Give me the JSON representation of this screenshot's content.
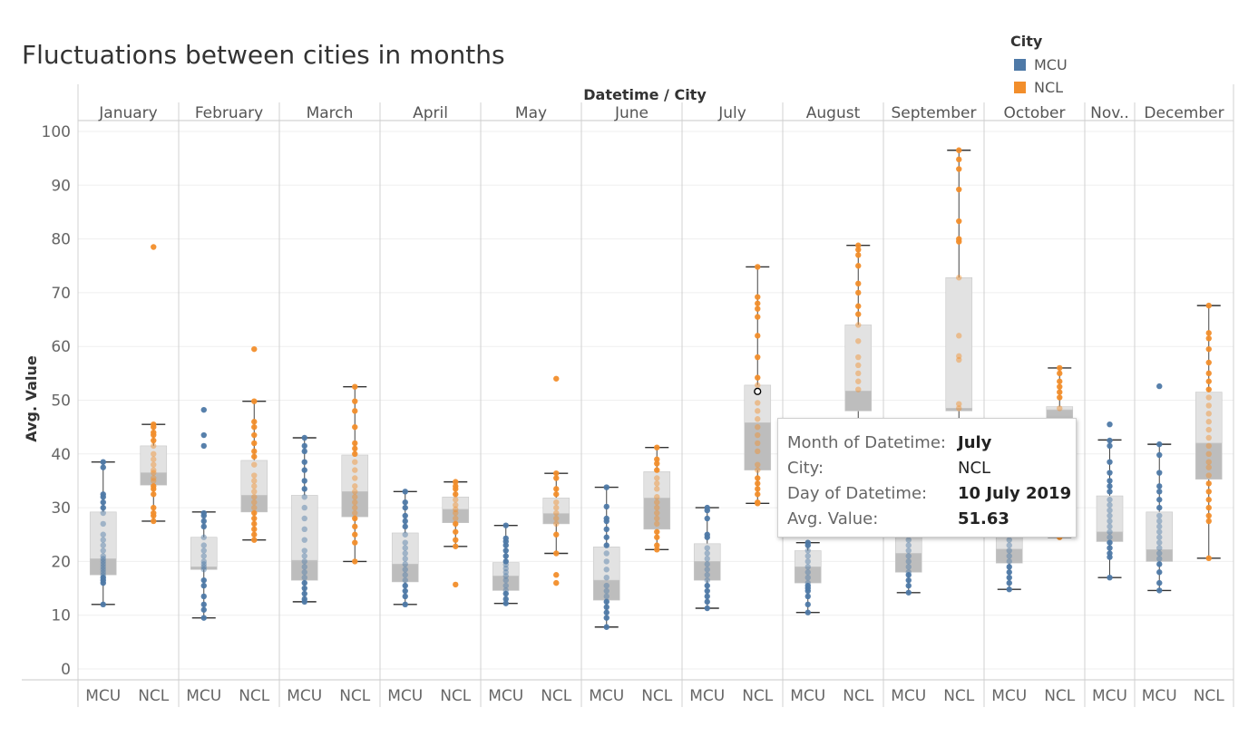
{
  "chart_data": {
    "type": "box",
    "title": "Fluctuations between cities in months",
    "column_header": "Datetime / City",
    "ylabel": "Avg. Value",
    "ylim": [
      0,
      100
    ],
    "yticks": [
      0,
      10,
      20,
      30,
      40,
      50,
      60,
      70,
      80,
      90,
      100
    ],
    "legend": {
      "title": "City",
      "position": "top-right",
      "items": [
        {
          "name": "MCU",
          "color": "#4e79a7"
        },
        {
          "name": "NCL",
          "color": "#f28e2b"
        }
      ]
    },
    "months": [
      {
        "label": "January",
        "MCU": {
          "min": 12,
          "q1": 17.5,
          "median": 20.5,
          "q3": 29.2,
          "max": 38.5,
          "points": [
            12,
            16,
            16.5,
            17,
            17.5,
            18,
            18.5,
            19,
            19.5,
            20,
            20.5,
            21,
            22,
            23,
            24,
            25,
            27,
            29,
            30,
            31,
            32,
            32.5,
            37.5,
            38.5
          ]
        },
        "NCL": {
          "min": 27.5,
          "q1": 34.2,
          "median": 36.5,
          "q3": 41.5,
          "max": 45.5,
          "points": [
            27.5,
            28.5,
            29,
            30,
            32.5,
            33.5,
            34,
            35,
            35.5,
            36.5,
            37,
            38,
            39,
            40,
            41.5,
            42.5,
            43.5,
            44,
            45,
            45.5,
            78.5
          ]
        }
      },
      {
        "label": "February",
        "MCU": {
          "min": 9.5,
          "q1": 18.5,
          "median": 19,
          "q3": 24.5,
          "max": 29.2,
          "points": [
            9.5,
            11,
            12,
            13.5,
            15.5,
            16.5,
            18.5,
            19,
            19.5,
            20,
            21,
            22,
            23,
            24.5,
            26.5,
            27.5,
            28.5,
            29,
            41.5,
            43.5,
            48.2
          ]
        },
        "NCL": {
          "min": 24,
          "q1": 29.2,
          "median": 32.3,
          "q3": 38.8,
          "max": 49.8,
          "points": [
            24,
            25,
            26,
            27,
            28,
            29,
            30,
            31,
            32,
            33,
            34,
            35,
            36,
            38,
            39.5,
            40.5,
            42,
            43.5,
            45,
            46,
            49.8,
            59.5
          ]
        }
      },
      {
        "label": "March",
        "MCU": {
          "min": 12.5,
          "q1": 16.5,
          "median": 20.2,
          "q3": 32.3,
          "max": 43,
          "points": [
            12.5,
            13,
            14,
            15,
            16,
            17,
            18,
            19,
            20,
            21,
            22,
            24,
            26,
            28,
            30,
            32,
            33.5,
            35,
            37,
            38.5,
            40.5,
            41.5,
            43
          ]
        },
        "NCL": {
          "min": 20,
          "q1": 28.3,
          "median": 33,
          "q3": 39.8,
          "max": 52.5,
          "points": [
            20,
            23.5,
            25,
            26.5,
            28,
            29,
            30,
            31,
            32,
            33,
            34,
            35.5,
            37,
            38.5,
            40,
            41,
            42,
            45,
            48,
            49.8,
            52.5
          ]
        }
      },
      {
        "label": "April",
        "MCU": {
          "min": 12,
          "q1": 16.2,
          "median": 19.5,
          "q3": 25.3,
          "max": 33,
          "points": [
            12,
            13.5,
            14.5,
            15.5,
            16.5,
            17.5,
            18.5,
            19.5,
            20.5,
            21.5,
            22.5,
            23.5,
            25,
            26.5,
            27.5,
            28.5,
            30,
            31,
            33
          ]
        },
        "NCL": {
          "min": 22.8,
          "q1": 27.2,
          "median": 29.7,
          "q3": 32,
          "max": 34.8,
          "points": [
            15.7,
            22.8,
            24,
            25.5,
            27,
            28,
            29,
            29.7,
            30.5,
            31.5,
            32.5,
            33.5,
            34,
            34.8
          ]
        }
      },
      {
        "label": "May",
        "MCU": {
          "min": 12.2,
          "q1": 14.6,
          "median": 17.3,
          "q3": 19.8,
          "max": 26.7,
          "points": [
            12.2,
            13,
            14,
            14.6,
            15.5,
            16.5,
            17.3,
            18,
            18.7,
            19.4,
            20,
            21,
            22,
            23,
            23.7,
            24.3,
            26.7
          ]
        },
        "NCL": {
          "min": 21.5,
          "q1": 27,
          "median": 28.9,
          "q3": 31.8,
          "max": 36.4,
          "points": [
            16,
            17.5,
            21.5,
            25,
            27,
            28,
            29,
            30,
            31,
            32.5,
            33.5,
            35.5,
            36.4,
            54
          ]
        }
      },
      {
        "label": "June",
        "MCU": {
          "min": 7.8,
          "q1": 12.8,
          "median": 16.5,
          "q3": 22.7,
          "max": 33.8,
          "points": [
            7.8,
            9.5,
            10.5,
            11.5,
            12.5,
            13.5,
            14.5,
            15.5,
            17,
            18.5,
            20,
            21.5,
            23,
            24.5,
            26,
            27.5,
            28,
            30.2,
            33.8
          ]
        },
        "NCL": {
          "min": 22.2,
          "q1": 26,
          "median": 31.8,
          "q3": 36.7,
          "max": 41.2,
          "points": [
            22.2,
            23,
            24.5,
            25.5,
            27,
            28,
            29,
            30,
            31,
            32,
            33.5,
            34.5,
            35.5,
            37,
            38.2,
            39,
            41.2
          ]
        }
      },
      {
        "label": "July",
        "MCU": {
          "min": 11.3,
          "q1": 16.5,
          "median": 20,
          "q3": 23.3,
          "max": 30,
          "points": [
            11.3,
            12.5,
            13.5,
            14.5,
            15.5,
            16.5,
            17.5,
            18.5,
            19.5,
            20.5,
            21.5,
            22.5,
            24.5,
            25,
            28,
            29.5,
            30
          ]
        },
        "NCL": {
          "min": 30.8,
          "q1": 37,
          "median": 45.8,
          "q3": 52.8,
          "max": 74.8,
          "points": [
            30.8,
            31,
            32.5,
            33.5,
            34.5,
            35.5,
            37,
            38,
            40.5,
            42,
            43.5,
            45,
            46.5,
            48,
            49.5,
            51.63,
            52.8,
            54.2,
            58,
            62,
            65.5,
            67,
            68,
            69.2,
            74.8
          ]
        }
      },
      {
        "label": "August",
        "MCU": {
          "min": 10.5,
          "q1": 16,
          "median": 19,
          "q3": 22,
          "max": 23.5,
          "points": [
            10.5,
            12,
            13.5,
            14.5,
            15,
            15.5,
            16,
            17,
            18,
            19,
            20,
            21,
            22,
            23,
            23.5
          ]
        },
        "NCL": {
          "min": 46,
          "q1": 48,
          "median": 51.7,
          "q3": 64,
          "max": 78.8,
          "points": [
            52,
            53.5,
            55,
            56.5,
            58,
            61,
            64,
            66,
            67.5,
            70,
            71.7,
            75,
            77,
            78,
            78.8
          ]
        }
      },
      {
        "label": "September",
        "MCU": {
          "min": 14.2,
          "q1": 18,
          "median": 21.5,
          "q3": 24.8,
          "max": 25.5,
          "points": [
            14.2,
            15.5,
            16.5,
            17.5,
            18,
            19,
            20,
            21,
            22,
            23,
            24,
            25.5
          ]
        },
        "NCL": {
          "min": 46,
          "q1": 48,
          "median": 48.5,
          "q3": 72.8,
          "max": 96.5,
          "points": [
            48.5,
            49.3,
            57.5,
            58.2,
            62,
            72.8,
            79.5,
            80,
            83.3,
            89.2,
            93,
            94.8,
            96.5
          ]
        }
      },
      {
        "label": "October",
        "MCU": {
          "min": 14.8,
          "q1": 19.7,
          "median": 22.3,
          "q3": 24.7,
          "max": 25.5,
          "points": [
            14.8,
            16,
            17,
            18,
            19,
            20,
            21,
            22,
            23,
            24,
            25.5
          ]
        },
        "NCL": {
          "min": 24.5,
          "q1": 45,
          "median": 48.2,
          "q3": 48.8,
          "max": 56,
          "points": [
            24.5,
            26,
            48.5,
            50.5,
            51.5,
            52.5,
            53.5,
            55,
            56
          ]
        }
      },
      {
        "label": "Nov..",
        "MCU": {
          "min": 17,
          "q1": 23.7,
          "median": 25.5,
          "q3": 32.2,
          "max": 42.6,
          "points": [
            17,
            20.8,
            21.5,
            22.5,
            23.5,
            24.5,
            25.5,
            26.5,
            27.5,
            28.5,
            29.5,
            30.5,
            31.5,
            33,
            34,
            35,
            36.5,
            38.5,
            41.5,
            42.5,
            45.5
          ]
        },
        "NCL": null
      },
      {
        "label": "December",
        "MCU": {
          "min": 14.6,
          "q1": 20,
          "median": 22.2,
          "q3": 29.2,
          "max": 41.8,
          "points": [
            14.6,
            16,
            18,
            19.5,
            20.5,
            21.5,
            22.5,
            23.5,
            24.5,
            25.5,
            26.5,
            27.5,
            28.5,
            30,
            31.5,
            33,
            34,
            36.5,
            39.8,
            41.8,
            52.6
          ]
        },
        "NCL": {
          "min": 20.6,
          "q1": 35.3,
          "median": 42,
          "q3": 51.5,
          "max": 67.6,
          "points": [
            20.6,
            27.5,
            28.5,
            30,
            31.5,
            33,
            34.5,
            36,
            37.5,
            38.5,
            40,
            41.5,
            43,
            44.5,
            46,
            47.5,
            49,
            50.5,
            52,
            53.5,
            55,
            57,
            59.5,
            61.5,
            62.5,
            67.6
          ]
        }
      }
    ],
    "x_cities": [
      "MCU",
      "NCL",
      "MCU",
      "NCL",
      "MCU",
      "NCL",
      "MCU",
      "NCL",
      "MCU",
      "NCL",
      "MCU",
      "NCL",
      "MCU",
      "NCL",
      "MCU",
      "NCL",
      "MCU",
      "NCL",
      "MCU",
      "NCL",
      "MCU",
      "MCU",
      "NCL"
    ],
    "highlighted_point": {
      "month": "July",
      "city": "NCL",
      "value": 51.63
    }
  },
  "tooltip": {
    "rows": [
      {
        "key": "Month of Datetime:",
        "value": "July"
      },
      {
        "key": "City:",
        "value": "NCL"
      },
      {
        "key": "Day of Datetime:",
        "value": "10 July 2019"
      },
      {
        "key": "Avg. Value:",
        "value": "51.63"
      }
    ]
  }
}
